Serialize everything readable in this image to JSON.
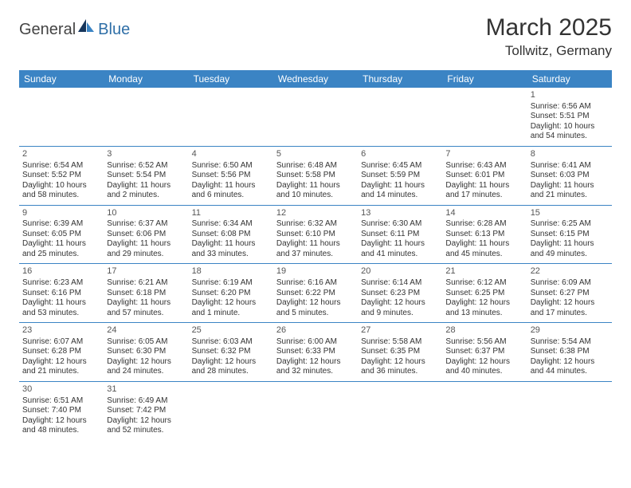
{
  "logo": {
    "part1": "General",
    "part2": "Blue"
  },
  "title": "March 2025",
  "location": "Tollwitz, Germany",
  "colors": {
    "header_bg": "#3b84c4",
    "header_text": "#ffffff",
    "border": "#3b84c4",
    "logo_gray": "#444444",
    "logo_blue": "#2f6fa7"
  },
  "day_headers": [
    "Sunday",
    "Monday",
    "Tuesday",
    "Wednesday",
    "Thursday",
    "Friday",
    "Saturday"
  ],
  "weeks": [
    [
      null,
      null,
      null,
      null,
      null,
      null,
      {
        "n": "1",
        "sr": "Sunrise: 6:56 AM",
        "ss": "Sunset: 5:51 PM",
        "d1": "Daylight: 10 hours",
        "d2": "and 54 minutes."
      }
    ],
    [
      {
        "n": "2",
        "sr": "Sunrise: 6:54 AM",
        "ss": "Sunset: 5:52 PM",
        "d1": "Daylight: 10 hours",
        "d2": "and 58 minutes."
      },
      {
        "n": "3",
        "sr": "Sunrise: 6:52 AM",
        "ss": "Sunset: 5:54 PM",
        "d1": "Daylight: 11 hours",
        "d2": "and 2 minutes."
      },
      {
        "n": "4",
        "sr": "Sunrise: 6:50 AM",
        "ss": "Sunset: 5:56 PM",
        "d1": "Daylight: 11 hours",
        "d2": "and 6 minutes."
      },
      {
        "n": "5",
        "sr": "Sunrise: 6:48 AM",
        "ss": "Sunset: 5:58 PM",
        "d1": "Daylight: 11 hours",
        "d2": "and 10 minutes."
      },
      {
        "n": "6",
        "sr": "Sunrise: 6:45 AM",
        "ss": "Sunset: 5:59 PM",
        "d1": "Daylight: 11 hours",
        "d2": "and 14 minutes."
      },
      {
        "n": "7",
        "sr": "Sunrise: 6:43 AM",
        "ss": "Sunset: 6:01 PM",
        "d1": "Daylight: 11 hours",
        "d2": "and 17 minutes."
      },
      {
        "n": "8",
        "sr": "Sunrise: 6:41 AM",
        "ss": "Sunset: 6:03 PM",
        "d1": "Daylight: 11 hours",
        "d2": "and 21 minutes."
      }
    ],
    [
      {
        "n": "9",
        "sr": "Sunrise: 6:39 AM",
        "ss": "Sunset: 6:05 PM",
        "d1": "Daylight: 11 hours",
        "d2": "and 25 minutes."
      },
      {
        "n": "10",
        "sr": "Sunrise: 6:37 AM",
        "ss": "Sunset: 6:06 PM",
        "d1": "Daylight: 11 hours",
        "d2": "and 29 minutes."
      },
      {
        "n": "11",
        "sr": "Sunrise: 6:34 AM",
        "ss": "Sunset: 6:08 PM",
        "d1": "Daylight: 11 hours",
        "d2": "and 33 minutes."
      },
      {
        "n": "12",
        "sr": "Sunrise: 6:32 AM",
        "ss": "Sunset: 6:10 PM",
        "d1": "Daylight: 11 hours",
        "d2": "and 37 minutes."
      },
      {
        "n": "13",
        "sr": "Sunrise: 6:30 AM",
        "ss": "Sunset: 6:11 PM",
        "d1": "Daylight: 11 hours",
        "d2": "and 41 minutes."
      },
      {
        "n": "14",
        "sr": "Sunrise: 6:28 AM",
        "ss": "Sunset: 6:13 PM",
        "d1": "Daylight: 11 hours",
        "d2": "and 45 minutes."
      },
      {
        "n": "15",
        "sr": "Sunrise: 6:25 AM",
        "ss": "Sunset: 6:15 PM",
        "d1": "Daylight: 11 hours",
        "d2": "and 49 minutes."
      }
    ],
    [
      {
        "n": "16",
        "sr": "Sunrise: 6:23 AM",
        "ss": "Sunset: 6:16 PM",
        "d1": "Daylight: 11 hours",
        "d2": "and 53 minutes."
      },
      {
        "n": "17",
        "sr": "Sunrise: 6:21 AM",
        "ss": "Sunset: 6:18 PM",
        "d1": "Daylight: 11 hours",
        "d2": "and 57 minutes."
      },
      {
        "n": "18",
        "sr": "Sunrise: 6:19 AM",
        "ss": "Sunset: 6:20 PM",
        "d1": "Daylight: 12 hours",
        "d2": "and 1 minute."
      },
      {
        "n": "19",
        "sr": "Sunrise: 6:16 AM",
        "ss": "Sunset: 6:22 PM",
        "d1": "Daylight: 12 hours",
        "d2": "and 5 minutes."
      },
      {
        "n": "20",
        "sr": "Sunrise: 6:14 AM",
        "ss": "Sunset: 6:23 PM",
        "d1": "Daylight: 12 hours",
        "d2": "and 9 minutes."
      },
      {
        "n": "21",
        "sr": "Sunrise: 6:12 AM",
        "ss": "Sunset: 6:25 PM",
        "d1": "Daylight: 12 hours",
        "d2": "and 13 minutes."
      },
      {
        "n": "22",
        "sr": "Sunrise: 6:09 AM",
        "ss": "Sunset: 6:27 PM",
        "d1": "Daylight: 12 hours",
        "d2": "and 17 minutes."
      }
    ],
    [
      {
        "n": "23",
        "sr": "Sunrise: 6:07 AM",
        "ss": "Sunset: 6:28 PM",
        "d1": "Daylight: 12 hours",
        "d2": "and 21 minutes."
      },
      {
        "n": "24",
        "sr": "Sunrise: 6:05 AM",
        "ss": "Sunset: 6:30 PM",
        "d1": "Daylight: 12 hours",
        "d2": "and 24 minutes."
      },
      {
        "n": "25",
        "sr": "Sunrise: 6:03 AM",
        "ss": "Sunset: 6:32 PM",
        "d1": "Daylight: 12 hours",
        "d2": "and 28 minutes."
      },
      {
        "n": "26",
        "sr": "Sunrise: 6:00 AM",
        "ss": "Sunset: 6:33 PM",
        "d1": "Daylight: 12 hours",
        "d2": "and 32 minutes."
      },
      {
        "n": "27",
        "sr": "Sunrise: 5:58 AM",
        "ss": "Sunset: 6:35 PM",
        "d1": "Daylight: 12 hours",
        "d2": "and 36 minutes."
      },
      {
        "n": "28",
        "sr": "Sunrise: 5:56 AM",
        "ss": "Sunset: 6:37 PM",
        "d1": "Daylight: 12 hours",
        "d2": "and 40 minutes."
      },
      {
        "n": "29",
        "sr": "Sunrise: 5:54 AM",
        "ss": "Sunset: 6:38 PM",
        "d1": "Daylight: 12 hours",
        "d2": "and 44 minutes."
      }
    ],
    [
      {
        "n": "30",
        "sr": "Sunrise: 6:51 AM",
        "ss": "Sunset: 7:40 PM",
        "d1": "Daylight: 12 hours",
        "d2": "and 48 minutes."
      },
      {
        "n": "31",
        "sr": "Sunrise: 6:49 AM",
        "ss": "Sunset: 7:42 PM",
        "d1": "Daylight: 12 hours",
        "d2": "and 52 minutes."
      },
      null,
      null,
      null,
      null,
      null
    ]
  ]
}
